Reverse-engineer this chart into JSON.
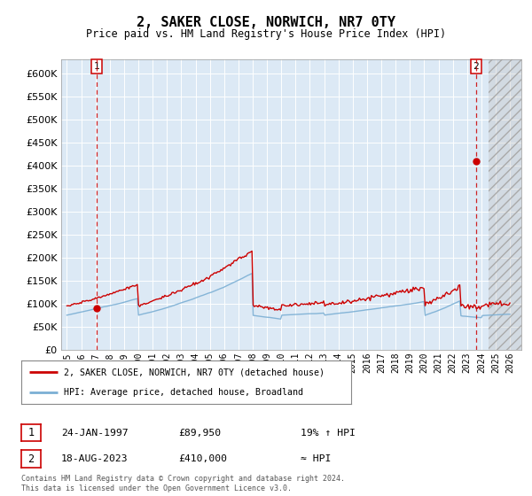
{
  "title": "2, SAKER CLOSE, NORWICH, NR7 0TY",
  "subtitle": "Price paid vs. HM Land Registry's House Price Index (HPI)",
  "y_ticks": [
    0,
    50000,
    100000,
    150000,
    200000,
    250000,
    300000,
    350000,
    400000,
    450000,
    500000,
    550000,
    600000
  ],
  "x_start_year": 1995,
  "x_end_year": 2026,
  "sale1_date": 1997.07,
  "sale1_price": 89950,
  "sale1_label": "1",
  "sale1_date_str": "24-JAN-1997",
  "sale1_price_str": "£89,950",
  "sale1_hpi_str": "19% ↑ HPI",
  "sale2_date": 2023.63,
  "sale2_price": 410000,
  "sale2_label": "2",
  "sale2_date_str": "18-AUG-2023",
  "sale2_price_str": "£410,000",
  "sale2_hpi_str": "≈ HPI",
  "legend_line1": "2, SAKER CLOSE, NORWICH, NR7 0TY (detached house)",
  "legend_line2": "HPI: Average price, detached house, Broadland",
  "footer": "Contains HM Land Registry data © Crown copyright and database right 2024.\nThis data is licensed under the Open Government Licence v3.0.",
  "line_color": "#cc0000",
  "hpi_color": "#7bafd4",
  "plot_bg": "#dce9f5",
  "hatch_color": "#c8c8c8"
}
